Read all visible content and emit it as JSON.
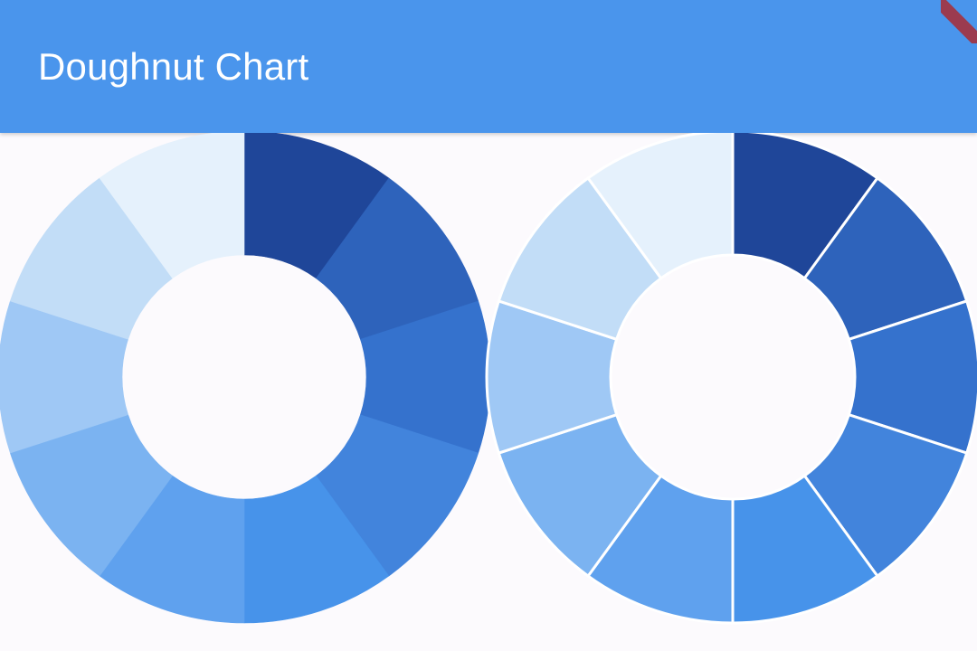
{
  "appbar": {
    "title": "Doughnut Chart",
    "background_color": "#4a95ec",
    "title_color": "#ffffff"
  },
  "debug_banner": {
    "icon": "debug-ribbon-icon",
    "color": "#9b3b4f"
  },
  "chart_data": [
    {
      "type": "pie",
      "variant": "doughnut",
      "segment_borders": false,
      "values": [
        1,
        1,
        1,
        1,
        1,
        1,
        1,
        1,
        1,
        1
      ],
      "colors": [
        "#1f4699",
        "#2e63bb",
        "#3572cd",
        "#4284dc",
        "#4793ea",
        "#5fa1ee",
        "#7bb3f1",
        "#9fc8f5",
        "#c2ddf7",
        "#e5f1fc"
      ]
    },
    {
      "type": "pie",
      "variant": "doughnut",
      "segment_borders": true,
      "border_color": "#ffffff",
      "values": [
        1,
        1,
        1,
        1,
        1,
        1,
        1,
        1,
        1,
        1
      ],
      "colors": [
        "#1f4699",
        "#2e63bb",
        "#3572cd",
        "#4284dc",
        "#4793ea",
        "#5fa1ee",
        "#7bb3f1",
        "#9fc8f5",
        "#c2ddf7",
        "#e5f1fc"
      ]
    }
  ]
}
